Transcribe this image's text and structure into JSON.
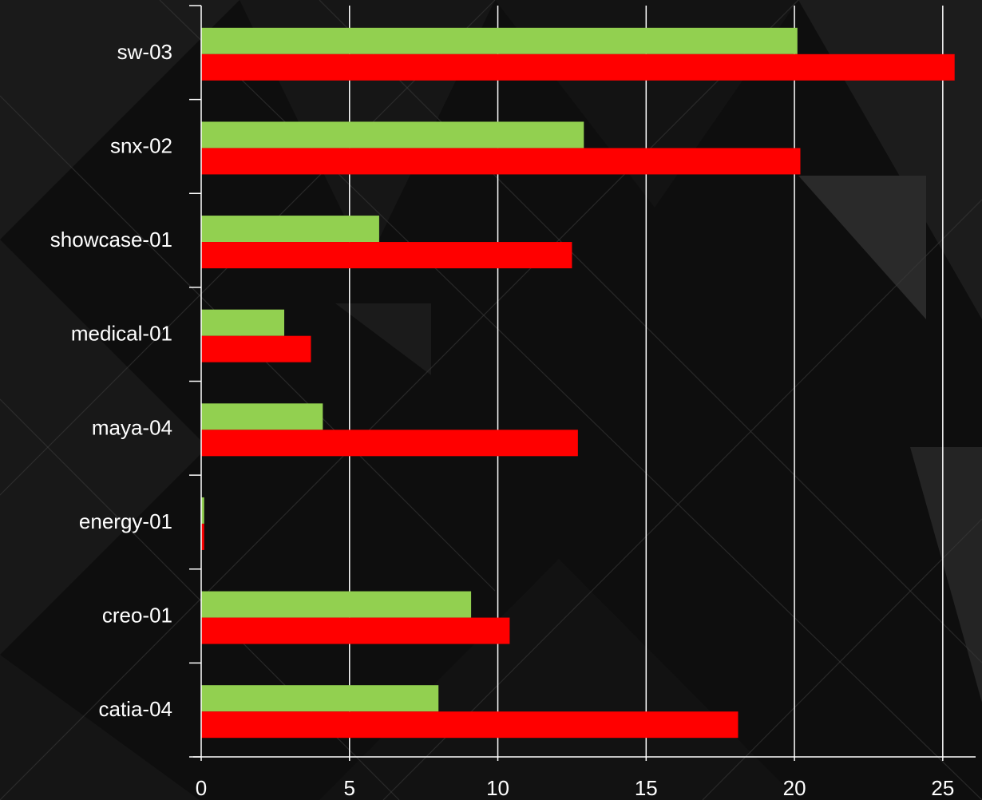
{
  "chart_data": {
    "type": "bar",
    "orientation": "horizontal",
    "categories": [
      "catia-04",
      "creo-01",
      "energy-01",
      "maya-04",
      "medical-01",
      "showcase-01",
      "snx-02",
      "sw-03"
    ],
    "series": [
      {
        "values": [
          8.0,
          9.1,
          0.1,
          4.1,
          2.8,
          6.0,
          12.9,
          20.1
        ],
        "color": "#92d050"
      },
      {
        "values": [
          18.1,
          10.4,
          0.1,
          12.7,
          3.7,
          12.5,
          20.2,
          25.4
        ],
        "color": "#ff0000"
      }
    ],
    "xlim": [
      0,
      26
    ],
    "xticks": [
      0,
      5,
      10,
      15,
      20,
      25
    ],
    "grid": "vertical",
    "legend": "none",
    "axis_color": "#ffffff",
    "text_color": "#ffffff",
    "background_color": "#0e0e0e"
  }
}
